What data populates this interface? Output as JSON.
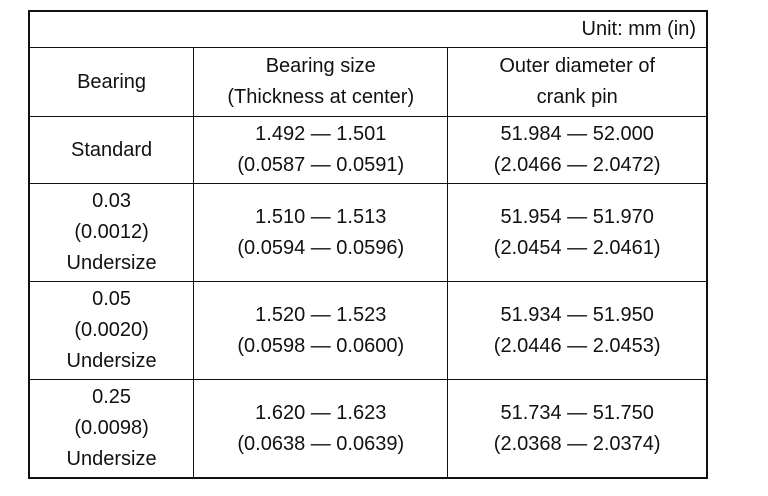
{
  "unit": "Unit: mm (in)",
  "table": {
    "header": [
      [
        "Bearing"
      ],
      [
        "Bearing size",
        "(Thickness at center)"
      ],
      [
        "Outer diameter of",
        "crank pin"
      ]
    ],
    "rows": [
      [
        [
          "Standard"
        ],
        [
          "1.492 — 1.501",
          "(0.0587 — 0.0591)"
        ],
        [
          "51.984 — 52.000",
          "(2.0466 — 2.0472)"
        ]
      ],
      [
        [
          "0.03",
          "(0.0012)",
          "Undersize"
        ],
        [
          "1.510 — 1.513",
          "(0.0594 — 0.0596)"
        ],
        [
          "51.954 — 51.970",
          "(2.0454 — 2.0461)"
        ]
      ],
      [
        [
          "0.05",
          "(0.0020)",
          "Undersize"
        ],
        [
          "1.520 — 1.523",
          "(0.0598 — 0.0600)"
        ],
        [
          "51.934 — 51.950",
          "(2.0446 — 2.0453)"
        ]
      ],
      [
        [
          "0.25",
          "(0.0098)",
          "Undersize"
        ],
        [
          "1.620 — 1.623",
          "(0.0638 — 0.0639)"
        ],
        [
          "51.734 — 51.750",
          "(2.0368 — 2.0374)"
        ]
      ]
    ]
  }
}
